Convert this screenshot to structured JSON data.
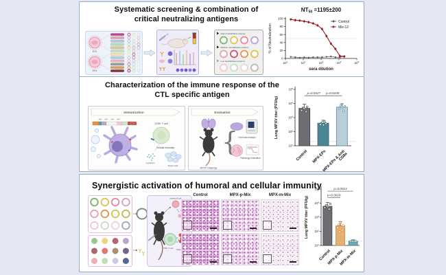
{
  "background_color": "#e6e7f5",
  "panel_border_color": "#93aec9",
  "panels": {
    "screening": {
      "title_line1": "Systematic screening & combination of",
      "title_line2": "critical neutralizing antigens",
      "virus_labels": [
        "EVs",
        "MVs"
      ],
      "antigen_bar_colors": [
        "#b5478f",
        "#e8a0b4",
        "#a8c8e8",
        "#bcd9b2",
        "#d9c79a",
        "#c5e0c0",
        "#f0e6b0",
        "#b0cce4",
        "#efb3c0",
        "#9a9a9a",
        "#d9a05c",
        "#8e2f3c"
      ],
      "screen_rows": [
        {
          "label": "High neutralization potency",
          "ring_colors": [
            "#7fb069",
            "#e0c24e",
            "#e08aa8",
            "#b59fd6"
          ]
        },
        {
          "label": "Medium neutralization potency",
          "ring_colors": [
            "#e8a0b4",
            "#c94f6d",
            "#e0944e",
            "#d8c254"
          ]
        },
        {
          "label": "Low neutralization potency",
          "ring_colors": [
            "#f0c8d2",
            "#c8ddc2",
            "#f0d0da",
            "#b8b8b8"
          ]
        }
      ]
    },
    "ctl": {
      "title_line1": "Characterization of the immune response of the",
      "title_line2": "CTL specific antigen",
      "immunization_label": "Immunization",
      "evaluation_label": "Evaluation",
      "construct_linker": "AAY",
      "cd8_label": "CD8+ T cell",
      "cellular_label": "Cellular immunity",
      "cytokines_label": "Cytokines",
      "target_cells_label": "Target cells",
      "challenge_label": "MPXV challenge",
      "viral_load_label": "Viral load analysis",
      "pathology_label": "Pathology evaluation"
    },
    "synergy": {
      "title": "Synergistic activation of humoral and cellular immunity",
      "ring_grid": [
        [
          "#7fb069",
          "#e0c24e",
          "#e08aa8",
          "#d6a0c0"
        ],
        [
          "#e8a0b4",
          "#e0944e",
          "#d8c254",
          "#c9b84e"
        ],
        [
          "#f0c8d2",
          "#c8ddc2",
          "#f0d0da",
          "#9aa8c0"
        ]
      ],
      "dot_grid": [
        [
          "#8fbc7a",
          "#e8cf68",
          "#a8485e",
          "#b094c4"
        ],
        [
          "#9c4a52",
          "#d95f5f",
          "#9c7a50",
          "#5c4a78"
        ],
        [
          "#e8a0a8",
          "#b8d8a8",
          "#c8c0e0",
          "#3c4a80"
        ]
      ],
      "plasma_label": "plasma B cell",
      "cd8_label": "CD8+ T cell",
      "target_label": "Target cell death",
      "histology_headers": [
        "Control",
        "MPX-p-Mix",
        "MPX-m-Mix"
      ]
    }
  },
  "chart_data": [
    {
      "id": "neutralization",
      "type": "line",
      "title_prefix": "NT",
      "title_sub": "50",
      "title_rest": " =1195±200",
      "ylabel": "% of Neutralization",
      "xlabel": "sera dilution",
      "x_log_range": [
        1,
        5
      ],
      "x_tick_exponents": [
        1,
        2,
        3,
        4,
        5
      ],
      "ylim": [
        0,
        100
      ],
      "yticks": [
        0,
        20,
        40,
        60,
        80,
        100
      ],
      "dashed_y": 50,
      "legend_position": "top-right",
      "grid": false,
      "series": [
        {
          "name": "Control",
          "color": "#58595b",
          "x_log": [
            1.3,
            1.55,
            1.8,
            2.05,
            2.3,
            2.55,
            2.8,
            3.05,
            3.3,
            3.55,
            3.8,
            4.05,
            4.3
          ],
          "values": [
            4,
            3,
            2,
            3,
            2,
            3,
            3,
            3,
            4,
            5,
            3,
            3,
            5
          ]
        },
        {
          "name": "Mix-12",
          "color": "#9b1c22",
          "x_log": [
            1.3,
            1.55,
            1.8,
            2.05,
            2.3,
            2.55,
            2.8,
            3.05,
            3.3,
            3.55,
            3.8,
            4.05,
            4.3
          ],
          "values": [
            98,
            96,
            95,
            93,
            91,
            88,
            83,
            74,
            56,
            37,
            24,
            6,
            5
          ]
        }
      ]
    },
    {
      "id": "ctl_titer",
      "type": "bar",
      "log_scale": true,
      "ylabel": "Lung MPXV titer (PFU/g)",
      "ylim_exponents": [
        1,
        5
      ],
      "categories": [
        "Control",
        "MPX-EPs",
        "MPX-EPs & Anti\nCD8a"
      ],
      "values": [
        4500,
        400,
        5500
      ],
      "bar_colors": [
        "#6d6e71",
        "#4a8794",
        "#b9ced7"
      ],
      "bar_edges": [
        "#414144",
        "#35616b",
        "#5b8a96"
      ],
      "error_high": [
        9000,
        650,
        9500
      ],
      "scatter": [
        [
          3200,
          5000,
          4200,
          2600,
          5800,
          4600
        ],
        [
          320,
          430,
          300,
          520,
          380,
          460
        ],
        [
          4200,
          7000,
          5400,
          3000,
          6400,
          5800
        ]
      ],
      "detection_limit": 20,
      "pvalues": [
        {
          "label": "p=0.0427",
          "from": 0,
          "to": 1,
          "y_exp": 4.55
        },
        {
          "label": "p=0.0105",
          "from": 1,
          "to": 2,
          "y_exp": 4.55
        }
      ]
    },
    {
      "id": "synergy_titer",
      "type": "bar",
      "log_scale": true,
      "ylabel": "Lung MPXV titer (PFU/g)",
      "ylim_exponents": [
        1,
        5
      ],
      "categories": [
        "Control",
        "MPX-p-Mix",
        "MPX-m-Mix"
      ],
      "values": [
        6000,
        250,
        20
      ],
      "bar_colors": [
        "#6d6e71",
        "#e5b071",
        "#6fa9b4"
      ],
      "bar_edges": [
        "#414144",
        "#c9853d",
        "#47808c"
      ],
      "error_high": [
        11000,
        480,
        25
      ],
      "scatter": [
        [
          4800,
          7000,
          5600,
          3800,
          9000,
          6400
        ],
        [
          180,
          300,
          420,
          120,
          260,
          95
        ],
        [
          20,
          20,
          20,
          20,
          20,
          20
        ]
      ],
      "detection_limit": 20,
      "pvalues": [
        {
          "label": "p=0.0019",
          "from": 0,
          "to": 1,
          "y_exp": 4.4
        },
        {
          "label": "p=0.0014",
          "from": 0,
          "to": 2,
          "y_exp": 4.85
        }
      ]
    }
  ]
}
